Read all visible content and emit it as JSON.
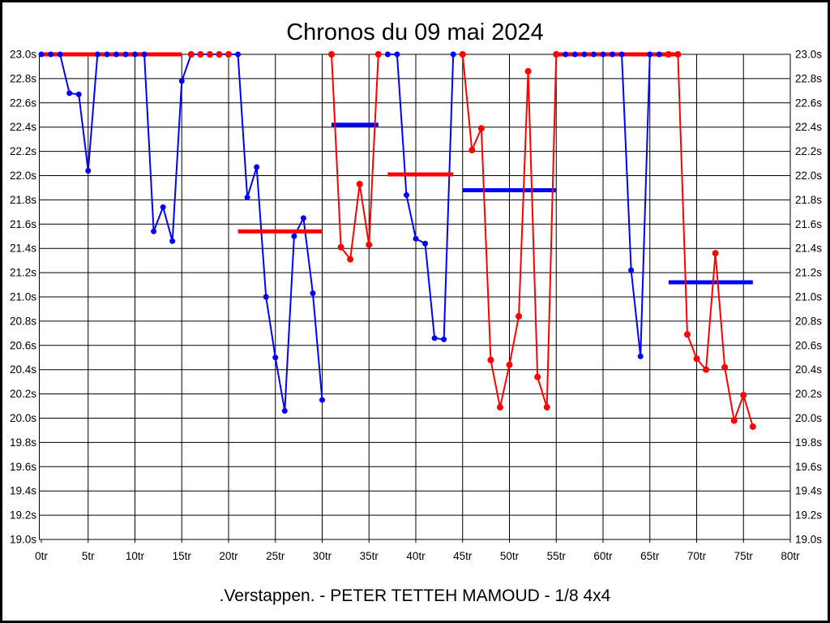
{
  "chart_data": {
    "type": "line",
    "title": "Chronos du 09 mai 2024",
    "footer": ".Verstappen. - PETER TETTEH MAMOUD - 1/8 4x4",
    "x_axis": {
      "unit": "tr",
      "min": 0,
      "max": 80,
      "ticks": [
        0,
        5,
        10,
        15,
        20,
        25,
        30,
        35,
        40,
        45,
        50,
        55,
        60,
        65,
        70,
        75,
        80
      ],
      "tick_labels": [
        "0tr",
        "5tr",
        "10tr",
        "15tr",
        "20tr",
        "25tr",
        "30tr",
        "35tr",
        "40tr",
        "45tr",
        "50tr",
        "55tr",
        "60tr",
        "65tr",
        "70tr",
        "75tr",
        "80tr"
      ]
    },
    "y_axis": {
      "unit": "s",
      "min": 19.0,
      "max": 23.0,
      "ticks": [
        23.0,
        22.8,
        22.6,
        22.4,
        22.2,
        22.0,
        21.8,
        21.6,
        21.4,
        21.2,
        21.0,
        20.8,
        20.6,
        20.4,
        20.2,
        20.0,
        19.8,
        19.6,
        19.4,
        19.2,
        19.0
      ],
      "tick_labels": [
        "23.0s",
        "22.8s",
        "22.6s",
        "22.4s",
        "22.2s",
        "22.0s",
        "21.8s",
        "21.6s",
        "21.4s",
        "21.2s",
        "21.0s",
        "20.8s",
        "20.6s",
        "20.4s",
        "20.2s",
        "20.0s",
        "19.8s",
        "19.6s",
        "19.4s",
        "19.2s",
        "19.0s"
      ],
      "labels_on_both_sides": true
    },
    "lap_time_cap_seconds": 23.0,
    "grid": true,
    "legend": "none",
    "colors": {
      "blue_series": "#0000FF",
      "red_series": "#FF0000",
      "grid": "#000000",
      "background": "#FFFFFF",
      "text": "#000000"
    },
    "series": [
      {
        "name": "blue-driver",
        "color_key": "blue_series",
        "marker": "circle",
        "marker_radius": 3.5,
        "stints": [
          {
            "line": true,
            "points": [
              [
                0,
                23
              ],
              [
                1,
                23
              ],
              [
                2,
                23
              ],
              [
                3,
                22.68
              ],
              [
                4,
                22.67
              ],
              [
                5,
                22.04
              ],
              [
                6,
                23
              ],
              [
                7,
                23
              ],
              [
                8,
                23
              ],
              [
                9,
                23
              ],
              [
                10,
                23
              ],
              [
                11,
                23
              ],
              [
                12,
                21.54
              ],
              [
                13,
                21.74
              ],
              [
                14,
                21.46
              ],
              [
                15,
                22.78
              ],
              [
                16,
                23
              ],
              [
                17,
                23
              ],
              [
                18,
                23
              ],
              [
                19,
                23
              ],
              [
                20,
                23
              ],
              [
                21,
                23
              ],
              [
                22,
                21.82
              ],
              [
                23,
                22.07
              ],
              [
                24,
                21.0
              ],
              [
                25,
                20.5
              ],
              [
                26,
                20.06
              ],
              [
                27,
                21.5
              ],
              [
                28,
                21.65
              ],
              [
                29,
                21.03
              ],
              [
                30,
                20.15
              ]
            ]
          },
          {
            "line": true,
            "points": [
              [
                37,
                23
              ],
              [
                38,
                23
              ],
              [
                39,
                21.84
              ],
              [
                40,
                21.48
              ],
              [
                41,
                21.44
              ],
              [
                42,
                20.66
              ],
              [
                43,
                20.65
              ],
              [
                44,
                23
              ]
            ]
          },
          {
            "line": true,
            "points": [
              [
                56,
                23
              ],
              [
                57,
                23
              ],
              [
                58,
                23
              ],
              [
                59,
                23
              ],
              [
                60,
                23
              ],
              [
                61,
                23
              ],
              [
                62,
                23
              ],
              [
                63,
                21.22
              ],
              [
                64,
                20.51
              ],
              [
                65,
                23
              ],
              [
                66,
                23
              ]
            ]
          }
        ]
      },
      {
        "name": "red-driver",
        "color_key": "red_series",
        "marker": "circle",
        "marker_radius": 4,
        "stints": [
          {
            "line": false,
            "points": [
              [
                16,
                23
              ],
              [
                17,
                23
              ],
              [
                18,
                23
              ],
              [
                19,
                23
              ],
              [
                20,
                23
              ]
            ]
          },
          {
            "line": true,
            "points": [
              [
                31,
                23
              ],
              [
                32,
                21.41
              ],
              [
                33,
                21.31
              ],
              [
                34,
                21.93
              ],
              [
                35,
                21.43
              ],
              [
                36,
                23
              ]
            ]
          },
          {
            "line": true,
            "points": [
              [
                45,
                23
              ],
              [
                46,
                22.21
              ],
              [
                47,
                22.39
              ],
              [
                48,
                20.48
              ],
              [
                49,
                20.09
              ],
              [
                50,
                20.44
              ],
              [
                51,
                20.84
              ],
              [
                52,
                22.86
              ],
              [
                53,
                20.34
              ],
              [
                54,
                20.09
              ],
              [
                55,
                23
              ]
            ]
          },
          {
            "line": true,
            "points": [
              [
                67,
                23
              ],
              [
                68,
                23
              ],
              [
                69,
                20.69
              ],
              [
                70,
                20.49
              ],
              [
                71,
                20.4
              ],
              [
                72,
                21.36
              ],
              [
                73,
                20.42
              ],
              [
                74,
                19.98
              ],
              [
                75,
                20.19
              ],
              [
                76,
                19.93
              ]
            ]
          }
        ]
      }
    ],
    "stint_average_lines": [
      {
        "color": "red",
        "seconds": 23.0,
        "from_lap": 0,
        "to_lap": 15
      },
      {
        "color": "red",
        "seconds": 21.54,
        "from_lap": 21,
        "to_lap": 30
      },
      {
        "color": "blue",
        "seconds": 22.42,
        "from_lap": 31,
        "to_lap": 36
      },
      {
        "color": "red",
        "seconds": 22.01,
        "from_lap": 37,
        "to_lap": 44
      },
      {
        "color": "blue",
        "seconds": 21.88,
        "from_lap": 45,
        "to_lap": 55
      },
      {
        "color": "red",
        "seconds": 23.0,
        "from_lap": 55,
        "to_lap": 68
      },
      {
        "color": "blue",
        "seconds": 21.12,
        "from_lap": 67,
        "to_lap": 76
      }
    ]
  }
}
